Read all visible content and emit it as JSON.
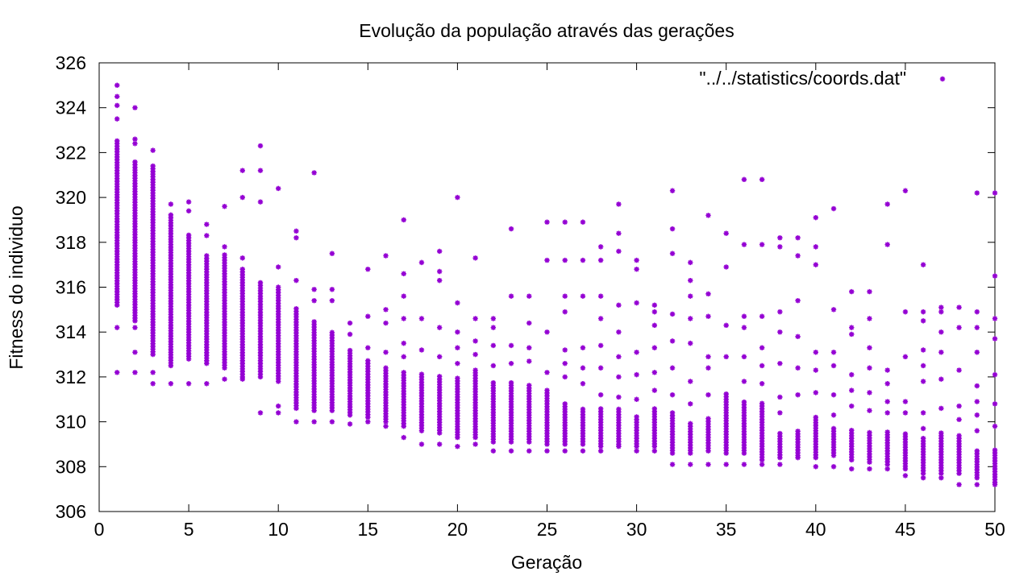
{
  "chart_data": {
    "type": "scatter",
    "title": "Evolução da população através das gerações",
    "xlabel": "Geração",
    "ylabel": "Fitness do individuo",
    "xlim": [
      0,
      50
    ],
    "ylim": [
      306,
      326
    ],
    "xticks": [
      "0",
      "5",
      "10",
      "15",
      "20",
      "25",
      "30",
      "35",
      "40",
      "45",
      "50"
    ],
    "yticks": [
      "306",
      "308",
      "310",
      "312",
      "314",
      "316",
      "318",
      "320",
      "322",
      "324",
      "326"
    ],
    "grid": false,
    "legend_position": "top-right",
    "marker": "star",
    "color": "#9400d3",
    "series": [
      {
        "name": "\"../../statistics/coords.dat\"",
        "points": [
          {
            "generation": 1,
            "min": 314.2,
            "core_low": 315.2,
            "core_high": 322.6,
            "outliers": [
              312.2,
              323.5,
              324.1,
              324.5,
              325.0
            ]
          },
          {
            "generation": 2,
            "min": 314.2,
            "core_low": 314.5,
            "core_high": 321.6,
            "outliers": [
              312.2,
              313.1,
              322.4,
              322.6,
              324.0
            ]
          },
          {
            "generation": 3,
            "min": 311.7,
            "core_low": 313.0,
            "core_high": 321.4,
            "outliers": [
              312.2,
              322.1
            ]
          },
          {
            "generation": 4,
            "min": 311.7,
            "core_low": 312.5,
            "core_high": 319.3,
            "outliers": [
              319.7
            ]
          },
          {
            "generation": 5,
            "min": 311.7,
            "core_low": 312.8,
            "core_high": 318.4,
            "outliers": [
              319.4,
              319.8
            ]
          },
          {
            "generation": 6,
            "min": 311.7,
            "core_low": 312.6,
            "core_high": 317.5,
            "outliers": [
              318.3,
              318.8
            ]
          },
          {
            "generation": 7,
            "min": 311.9,
            "core_low": 312.4,
            "core_high": 317.5,
            "outliers": [
              317.8,
              319.6
            ]
          },
          {
            "generation": 8,
            "min": 311.9,
            "core_low": 312.0,
            "core_high": 316.9,
            "outliers": [
              317.3,
              320.0,
              321.2
            ]
          },
          {
            "generation": 9,
            "min": 310.4,
            "core_low": 312.0,
            "core_high": 316.3,
            "outliers": [
              319.8,
              321.2,
              322.3
            ]
          },
          {
            "generation": 10,
            "min": 310.4,
            "core_low": 311.8,
            "core_high": 316.1,
            "outliers": [
              310.7,
              316.9,
              320.4
            ]
          },
          {
            "generation": 11,
            "min": 310.0,
            "core_low": 310.6,
            "core_high": 315.1,
            "outliers": [
              316.3,
              318.2,
              318.5
            ]
          },
          {
            "generation": 12,
            "min": 310.0,
            "core_low": 310.5,
            "core_high": 314.5,
            "outliers": [
              315.4,
              315.9,
              321.1
            ]
          },
          {
            "generation": 13,
            "min": 310.0,
            "core_low": 310.5,
            "core_high": 314.0,
            "outliers": [
              315.4,
              315.9,
              317.5
            ]
          },
          {
            "generation": 14,
            "min": 309.9,
            "core_low": 310.3,
            "core_high": 313.2,
            "outliers": [
              313.9,
              314.4
            ]
          },
          {
            "generation": 15,
            "min": 310.0,
            "core_low": 310.2,
            "core_high": 312.8,
            "outliers": [
              313.3,
              314.7,
              316.8
            ]
          },
          {
            "generation": 16,
            "min": 309.8,
            "core_low": 310.0,
            "core_high": 312.4,
            "outliers": [
              313.1,
              314.4,
              315.0,
              317.4
            ]
          },
          {
            "generation": 17,
            "min": 309.3,
            "core_low": 309.8,
            "core_high": 312.3,
            "outliers": [
              312.9,
              313.5,
              314.6,
              315.6,
              316.6,
              319.0
            ]
          },
          {
            "generation": 18,
            "min": 309.0,
            "core_low": 309.6,
            "core_high": 312.2,
            "outliers": [
              313.2,
              314.6,
              317.1
            ]
          },
          {
            "generation": 19,
            "min": 309.0,
            "core_low": 309.5,
            "core_high": 312.1,
            "outliers": [
              312.9,
              314.2,
              316.3,
              316.7,
              317.6
            ]
          },
          {
            "generation": 20,
            "min": 308.9,
            "core_low": 309.3,
            "core_high": 312.0,
            "outliers": [
              312.6,
              313.3,
              314.0,
              315.3,
              320.0
            ]
          },
          {
            "generation": 21,
            "min": 309.0,
            "core_low": 309.3,
            "core_high": 312.3,
            "outliers": [
              313.0,
              313.6,
              314.6,
              317.3
            ]
          },
          {
            "generation": 22,
            "min": 308.7,
            "core_low": 309.1,
            "core_high": 311.8,
            "outliers": [
              312.5,
              313.4,
              314.2,
              314.6
            ]
          },
          {
            "generation": 23,
            "min": 308.7,
            "core_low": 309.1,
            "core_high": 311.8,
            "outliers": [
              312.6,
              313.4,
              315.6,
              318.6
            ]
          },
          {
            "generation": 24,
            "min": 308.7,
            "core_low": 309.1,
            "core_high": 311.7,
            "outliers": [
              312.7,
              313.3,
              314.4,
              315.6
            ]
          },
          {
            "generation": 25,
            "min": 308.7,
            "core_low": 309.0,
            "core_high": 311.5,
            "outliers": [
              312.2,
              314.0,
              317.2,
              318.9
            ]
          },
          {
            "generation": 26,
            "min": 308.7,
            "core_low": 309.0,
            "core_high": 310.8,
            "outliers": [
              312.0,
              312.6,
              313.2,
              314.9,
              315.6,
              317.2,
              318.9
            ]
          },
          {
            "generation": 27,
            "min": 308.7,
            "core_low": 309.0,
            "core_high": 310.6,
            "outliers": [
              311.7,
              312.4,
              313.3,
              315.6,
              317.2,
              318.9
            ]
          },
          {
            "generation": 28,
            "min": 308.7,
            "core_low": 308.9,
            "core_high": 310.6,
            "outliers": [
              311.2,
              312.4,
              313.4,
              314.6,
              315.6,
              317.2,
              317.8
            ]
          },
          {
            "generation": 29,
            "min": 308.9,
            "core_low": 309.0,
            "core_high": 310.6,
            "outliers": [
              311.1,
              312.0,
              312.9,
              314.0,
              315.2,
              317.6,
              318.4,
              319.7
            ]
          },
          {
            "generation": 30,
            "min": 308.7,
            "core_low": 308.9,
            "core_high": 310.3,
            "outliers": [
              311.0,
              312.1,
              313.1,
              315.3,
              317.2,
              316.8
            ]
          },
          {
            "generation": 31,
            "min": 308.7,
            "core_low": 308.9,
            "core_high": 310.6,
            "outliers": [
              311.4,
              312.2,
              313.3,
              314.3,
              314.9,
              315.2
            ]
          },
          {
            "generation": 32,
            "min": 308.1,
            "core_low": 308.6,
            "core_high": 310.5,
            "outliers": [
              311.2,
              312.4,
              313.6,
              314.8,
              317.5,
              318.6,
              320.3
            ]
          },
          {
            "generation": 33,
            "min": 308.1,
            "core_low": 308.6,
            "core_high": 310.0,
            "outliers": [
              310.8,
              311.8,
              313.5,
              314.6,
              315.6,
              316.3,
              317.1
            ]
          },
          {
            "generation": 34,
            "min": 308.1,
            "core_low": 308.7,
            "core_high": 310.2,
            "outliers": [
              311.2,
              312.4,
              312.9,
              314.7,
              315.7,
              319.2
            ]
          },
          {
            "generation": 35,
            "min": 308.1,
            "core_low": 308.6,
            "core_high": 311.3,
            "outliers": [
              312.9,
              314.3,
              316.9,
              318.4
            ]
          },
          {
            "generation": 36,
            "min": 308.1,
            "core_low": 308.6,
            "core_high": 310.9,
            "outliers": [
              311.8,
              312.9,
              314.2,
              314.7,
              317.9,
              320.8
            ]
          },
          {
            "generation": 37,
            "min": 308.1,
            "core_low": 308.3,
            "core_high": 310.9,
            "outliers": [
              311.7,
              312.5,
              313.3,
              314.7,
              317.9,
              320.8
            ]
          },
          {
            "generation": 38,
            "min": 308.1,
            "core_low": 308.4,
            "core_high": 309.5,
            "outliers": [
              310.4,
              311.1,
              312.6,
              314.0,
              314.9,
              317.8,
              318.2
            ]
          },
          {
            "generation": 39,
            "min": 308.4,
            "core_low": 308.5,
            "core_high": 309.6,
            "outliers": [
              311.2,
              312.4,
              313.8,
              315.4,
              317.4,
              318.2
            ]
          },
          {
            "generation": 40,
            "min": 308.0,
            "core_low": 308.4,
            "core_high": 310.3,
            "outliers": [
              311.3,
              312.3,
              313.1,
              317.0,
              317.8,
              319.1
            ]
          },
          {
            "generation": 41,
            "min": 308.0,
            "core_low": 308.5,
            "core_high": 309.7,
            "outliers": [
              310.3,
              311.2,
              312.5,
              313.1,
              315.0,
              319.5
            ]
          },
          {
            "generation": 42,
            "min": 307.9,
            "core_low": 308.3,
            "core_high": 309.7,
            "outliers": [
              310.7,
              311.4,
              312.1,
              313.9,
              314.2,
              315.8
            ]
          },
          {
            "generation": 43,
            "min": 307.9,
            "core_low": 308.2,
            "core_high": 309.6,
            "outliers": [
              310.5,
              311.3,
              312.4,
              313.3,
              314.6,
              315.8
            ]
          },
          {
            "generation": 44,
            "min": 307.9,
            "core_low": 308.1,
            "core_high": 309.6,
            "outliers": [
              310.4,
              310.9,
              311.7,
              312.3,
              317.9,
              319.7
            ]
          },
          {
            "generation": 45,
            "min": 307.6,
            "core_low": 307.9,
            "core_high": 309.5,
            "outliers": [
              310.4,
              310.9,
              312.9,
              314.9,
              320.3
            ]
          },
          {
            "generation": 46,
            "min": 307.5,
            "core_low": 307.7,
            "core_high": 309.3,
            "outliers": [
              309.7,
              310.4,
              311.8,
              312.5,
              313.2,
              314.5,
              314.9,
              317.0
            ]
          },
          {
            "generation": 47,
            "min": 307.5,
            "core_low": 307.7,
            "core_high": 309.6,
            "outliers": [
              310.6,
              311.9,
              313.1,
              314.0,
              314.9,
              315.1
            ]
          },
          {
            "generation": 48,
            "min": 307.2,
            "core_low": 307.7,
            "core_high": 309.4,
            "outliers": [
              310.1,
              310.7,
              312.3,
              314.2,
              315.1
            ]
          },
          {
            "generation": 49,
            "min": 307.2,
            "core_low": 307.5,
            "core_high": 308.7,
            "outliers": [
              309.6,
              310.3,
              310.9,
              311.6,
              313.1,
              314.2,
              314.9,
              320.2
            ]
          },
          {
            "generation": 50,
            "min": 307.2,
            "core_low": 307.3,
            "core_high": 308.8,
            "outliers": [
              309.8,
              310.8,
              312.1,
              313.7,
              314.6,
              316.5,
              320.2
            ]
          }
        ]
      }
    ]
  }
}
